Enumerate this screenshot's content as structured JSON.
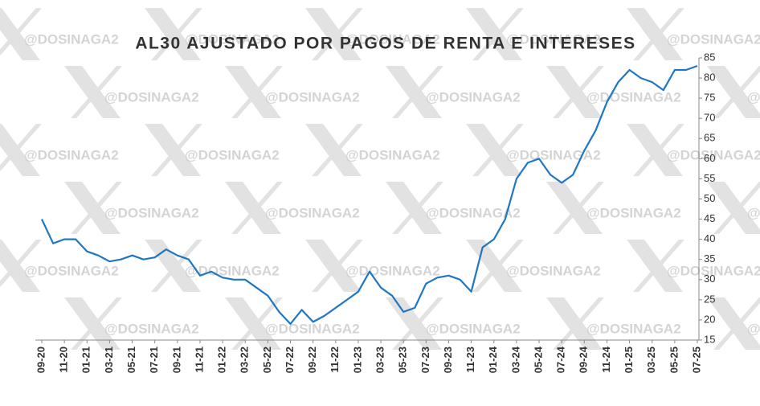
{
  "chart_data": {
    "type": "line",
    "title": "AL30 AJUSTADO POR PAGOS DE RENTA E INTERESES",
    "watermark": "@DOSINAGA2",
    "categories": [
      "09-20",
      null,
      "11-20",
      null,
      "01-21",
      null,
      "03-21",
      null,
      "05-21",
      null,
      "07-21",
      null,
      "09-21",
      null,
      "11-21",
      null,
      "01-22",
      null,
      "03-22",
      null,
      "05-22",
      null,
      "07-22",
      null,
      "09-22",
      null,
      "11-22",
      null,
      "01-23",
      null,
      "03-23",
      null,
      "05-23",
      null,
      "07-23",
      null,
      "09-23",
      null,
      "11-23",
      null,
      "01-24",
      null,
      "03-24",
      null,
      "05-24",
      null,
      "07-24",
      null,
      "09-24",
      null,
      "11-24",
      null,
      "01-25",
      null,
      "03-25",
      null,
      "05-25",
      null,
      "07-25"
    ],
    "series": [
      {
        "name": "AL30",
        "color": "#1f77c4",
        "values": [
          45,
          39,
          40,
          40,
          37,
          36,
          34.5,
          35,
          36,
          35,
          35.5,
          37.5,
          36,
          35,
          31,
          32,
          30.5,
          30,
          30,
          28,
          26,
          22,
          19,
          22.5,
          19.5,
          21,
          23,
          25,
          27,
          32,
          28,
          26,
          22,
          23,
          29,
          30.5,
          31,
          30,
          27,
          38,
          40,
          45,
          55,
          59,
          60,
          56,
          54,
          56,
          62,
          67,
          74,
          79,
          82,
          80,
          79,
          77,
          82,
          82,
          83
        ]
      }
    ],
    "ylim": [
      15,
      85
    ],
    "yticks": [
      15,
      20,
      25,
      30,
      35,
      40,
      45,
      50,
      55,
      60,
      65,
      70,
      75,
      80,
      85
    ],
    "grid": false
  }
}
